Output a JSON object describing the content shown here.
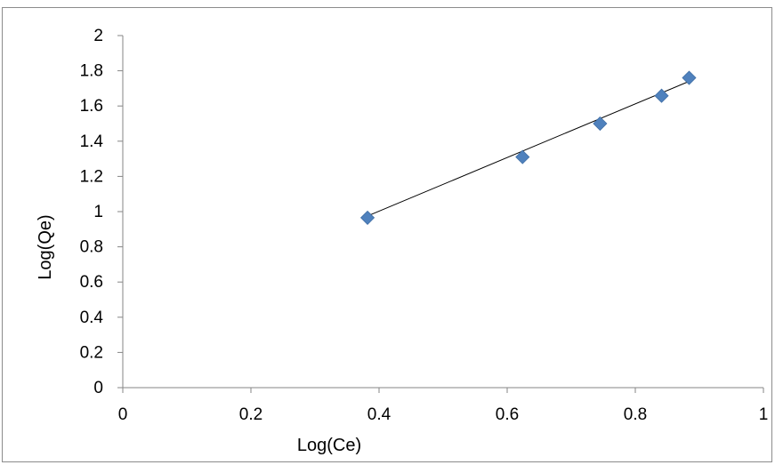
{
  "chart_data": {
    "type": "scatter",
    "title": "",
    "xlabel": "Log(Ce)",
    "ylabel": "Log(Qe)",
    "xlim": [
      0,
      1
    ],
    "ylim": [
      0,
      2
    ],
    "x_ticks": [
      0,
      0.2,
      0.4,
      0.6,
      0.8,
      1
    ],
    "x_tick_labels": [
      "0",
      "0.2",
      "0.4",
      "0.6",
      "0.8",
      "1"
    ],
    "y_ticks": [
      0,
      0.2,
      0.4,
      0.6,
      0.8,
      1,
      1.2,
      1.4,
      1.6,
      1.8,
      2
    ],
    "y_tick_labels": [
      "0",
      "0.2",
      "0.4",
      "0.6",
      "0.8",
      "1",
      "1.2",
      "1.4",
      "1.6",
      "1.8",
      "2"
    ],
    "grid": false,
    "legend": "none",
    "series": [
      {
        "marker": "diamond",
        "color": "#4F81BD",
        "x": [
          0.382,
          0.624,
          0.745,
          0.841,
          0.884
        ],
        "y": [
          0.965,
          1.31,
          1.5,
          1.658,
          1.76
        ]
      }
    ],
    "trendline": {
      "type": "linear",
      "color": "#000000",
      "x": [
        0.382,
        0.884
      ],
      "y": [
        0.975,
        1.74
      ]
    }
  }
}
